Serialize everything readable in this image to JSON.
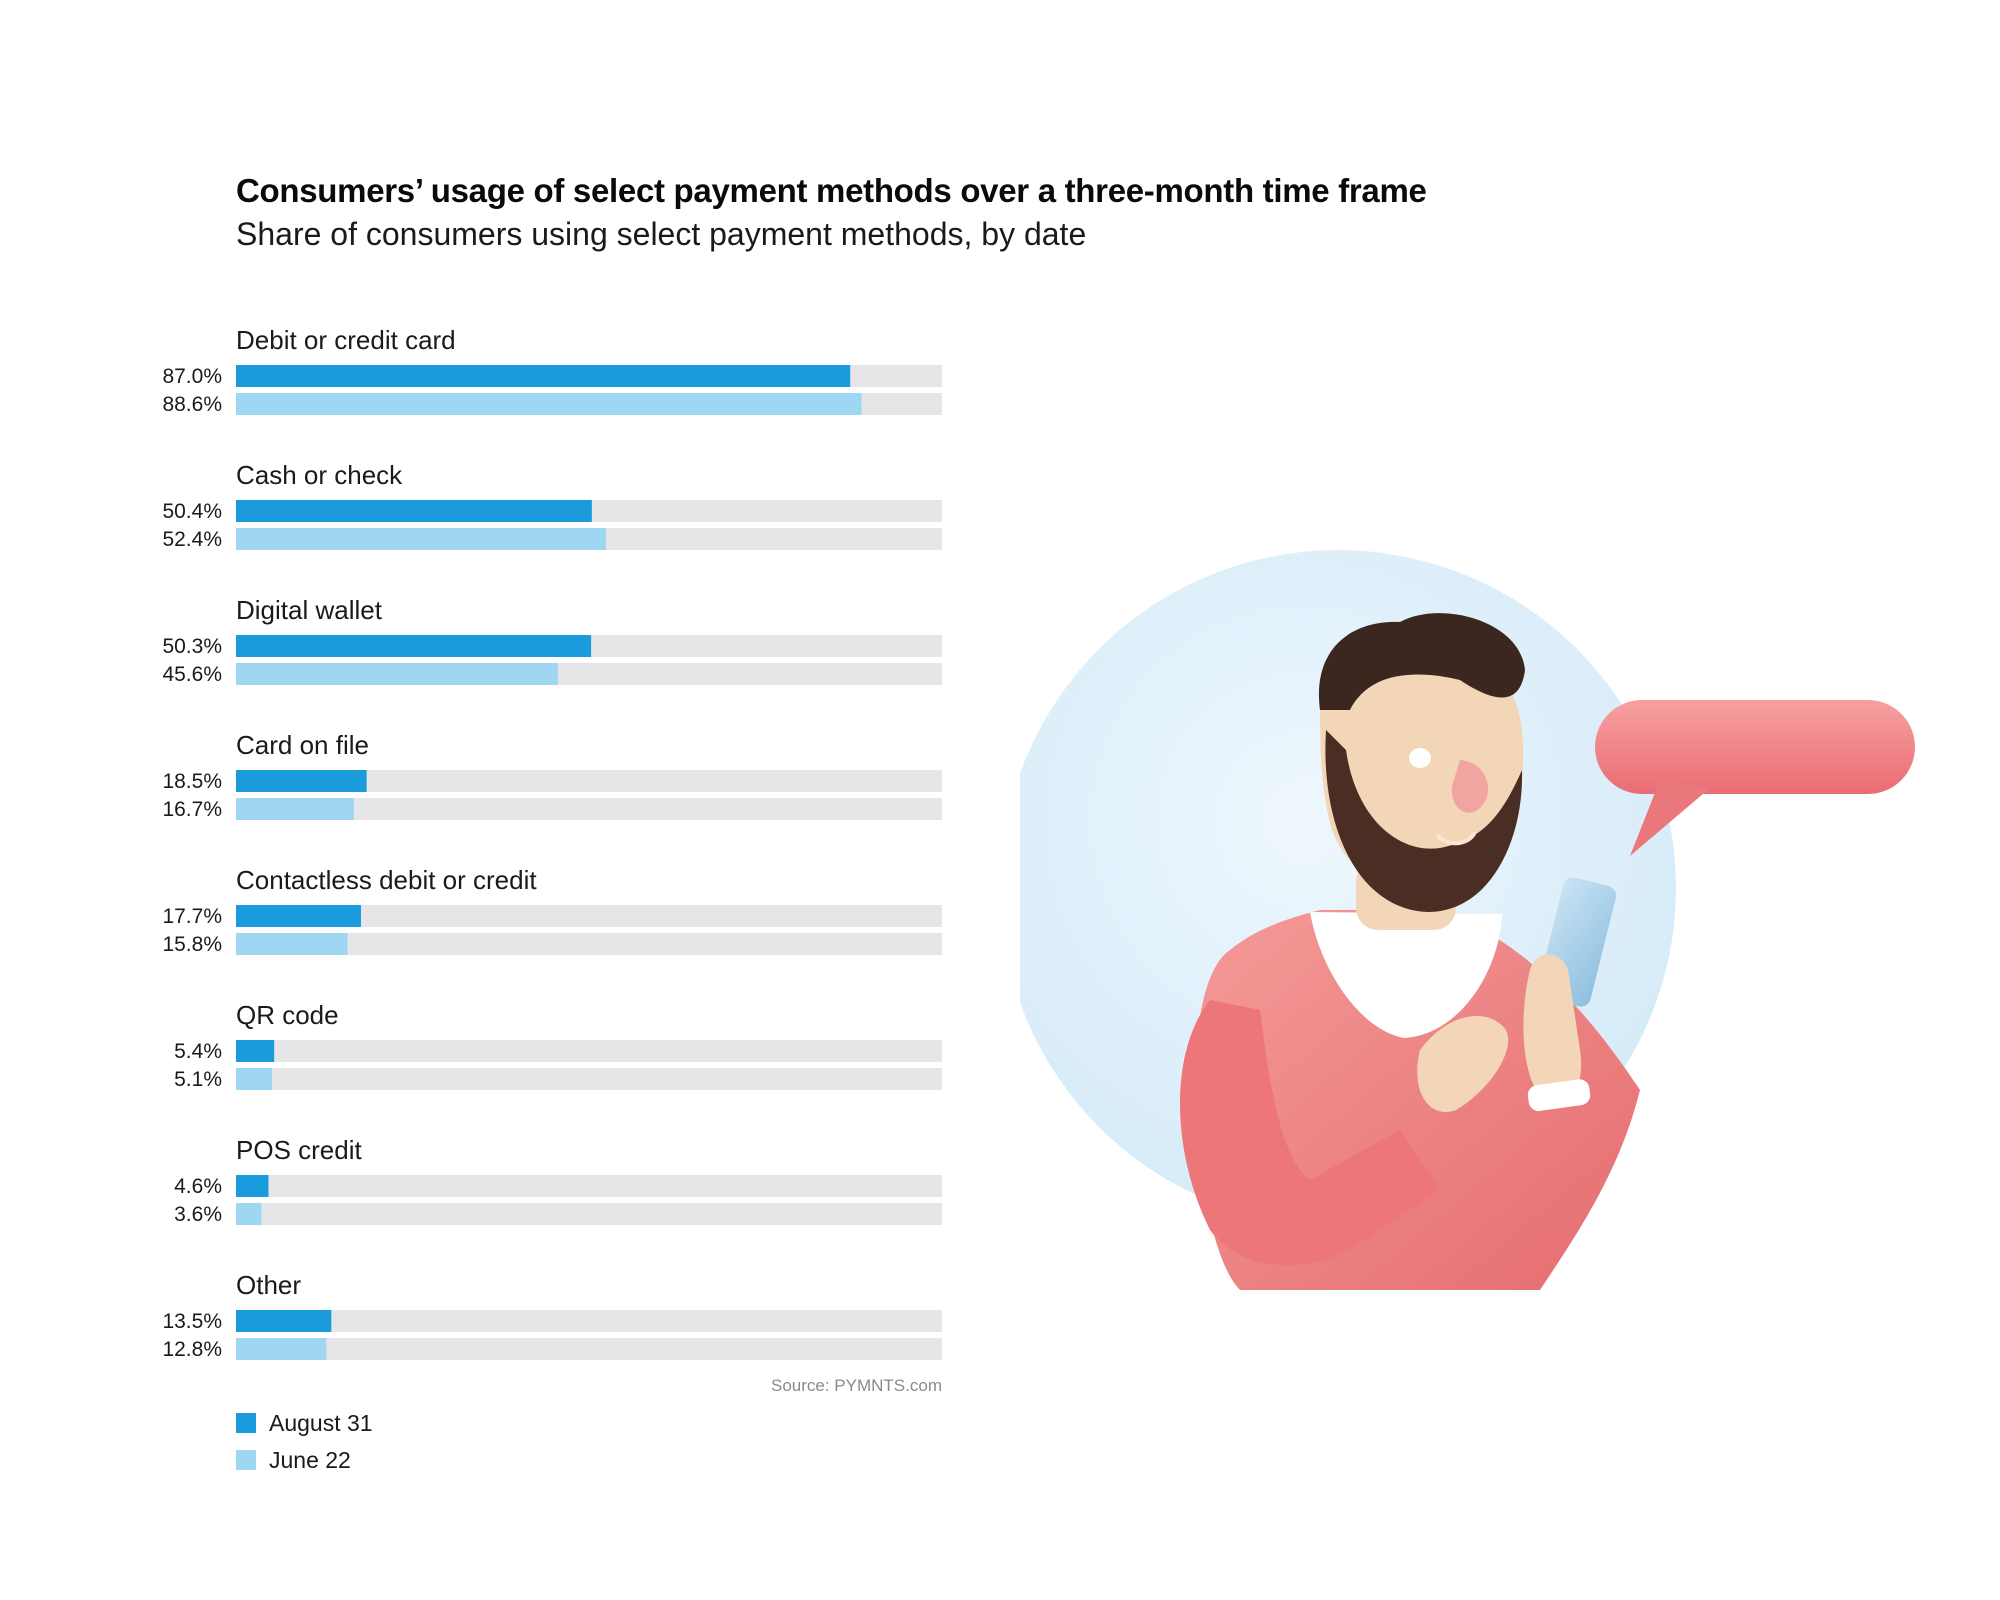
{
  "chart_data": {
    "type": "bar",
    "orientation": "horizontal",
    "title": "Consumers’ usage of select payment methods over a three-month time frame",
    "subtitle": "Share of consumers using select payment methods, by date",
    "categories": [
      "Debit or credit card",
      "Cash or check",
      "Digital wallet",
      "Card on file",
      "Contactless debit or credit",
      "QR code",
      "POS credit",
      "Other"
    ],
    "series": [
      {
        "name": "August 31",
        "color": "#1a9bdb",
        "values": [
          87.0,
          50.4,
          50.3,
          18.5,
          17.7,
          5.4,
          4.6,
          13.5
        ],
        "labels": [
          "87.0%",
          "50.4%",
          "50.3%",
          "18.5%",
          "17.7%",
          "5.4%",
          "4.6%",
          "13.5%"
        ]
      },
      {
        "name": "June 22",
        "color": "#9fd6f2",
        "values": [
          88.6,
          52.4,
          45.6,
          16.7,
          15.8,
          5.1,
          3.6,
          12.8
        ],
        "labels": [
          "88.6%",
          "52.4%",
          "45.6%",
          "16.7%",
          "15.8%",
          "5.1%",
          "3.6%",
          "12.8%"
        ]
      }
    ],
    "xlim": [
      0,
      100
    ],
    "track_color": "#e6e6e9",
    "grid": false,
    "legend_position": "bottom-left",
    "source": "Source: PYMNTS.com"
  },
  "illustration": {
    "icon": "man-with-smartphone-illustration",
    "circle_color": "#dff0fa",
    "sweater_color": "#ee7b7b",
    "bubble_color": "#f08484",
    "hair_color": "#3b2620",
    "skin_color": "#f3d6b8",
    "phone_color": "#aed3ec"
  }
}
